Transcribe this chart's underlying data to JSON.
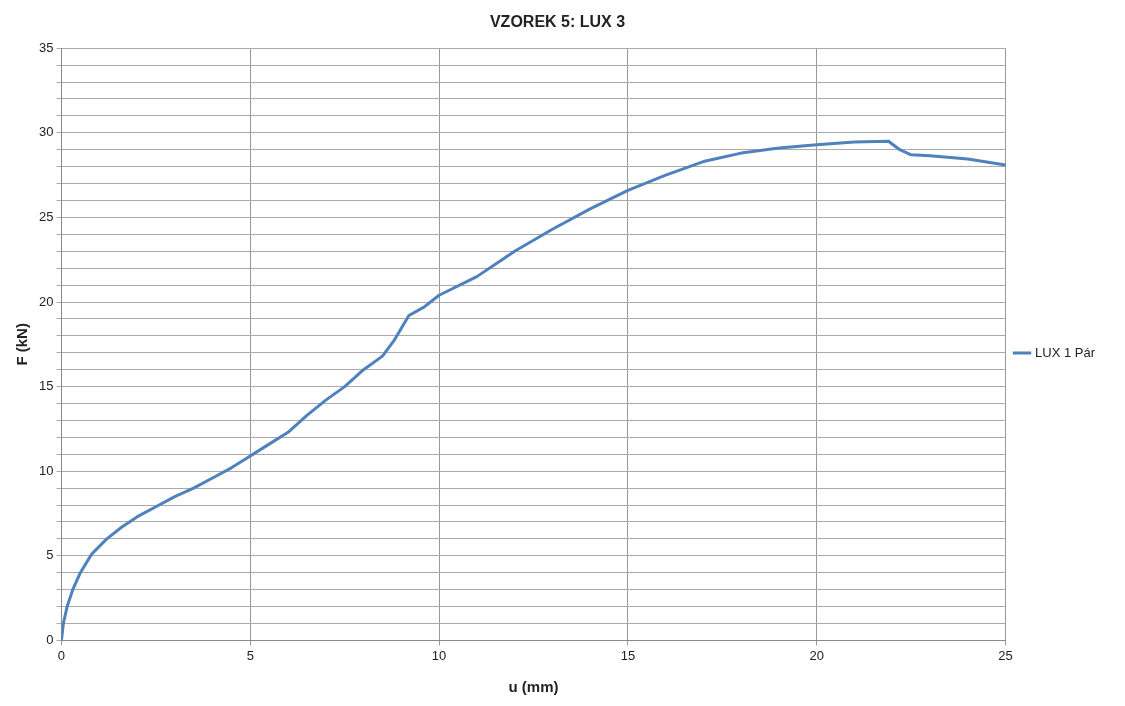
{
  "chart_data": {
    "type": "line",
    "title": "VZOREK 5: LUX 3",
    "xlabel": "u (mm)",
    "ylabel": "F (kN)",
    "xlim": [
      0,
      25
    ],
    "xticks": [
      0,
      5,
      10,
      15,
      20,
      25
    ],
    "ylim": [
      0,
      35
    ],
    "yticks": [
      0,
      {
        "value": 1,
        "label": null
      },
      {
        "value": 2,
        "label": null
      },
      {
        "value": 3,
        "label": null
      },
      {
        "value": 4,
        "label": null
      },
      5,
      {
        "value": 6,
        "label": null
      },
      {
        "value": 7,
        "label": null
      },
      {
        "value": 8,
        "label": null
      },
      {
        "value": 9,
        "label": null
      },
      10,
      {
        "value": 11,
        "label": null
      },
      {
        "value": 12,
        "label": null
      },
      {
        "value": 13,
        "label": null
      },
      {
        "value": 14,
        "label": null
      },
      15,
      {
        "value": 16,
        "label": null
      },
      {
        "value": 17,
        "label": null
      },
      {
        "value": 18,
        "label": null
      },
      {
        "value": 19,
        "label": null
      },
      20,
      {
        "value": 21,
        "label": null
      },
      {
        "value": 22,
        "label": null
      },
      {
        "value": 23,
        "label": null
      },
      {
        "value": 24,
        "label": null
      },
      25,
      {
        "value": 26,
        "label": null
      },
      {
        "value": 27,
        "label": null
      },
      {
        "value": 28,
        "label": null
      },
      {
        "value": 29,
        "label": null
      },
      30,
      {
        "value": 31,
        "label": null
      },
      {
        "value": 32,
        "label": null
      },
      {
        "value": 33,
        "label": null
      },
      {
        "value": 34,
        "label": null
      },
      35
    ],
    "grid": true,
    "legend": "right",
    "marker": "none",
    "line_style": "solid",
    "series": [
      {
        "name": "LUX 1 Pár",
        "color": "#4f81bd",
        "x": [
          0,
          0.05,
          0.15,
          0.3,
          0.5,
          0.8,
          1.2,
          1.6,
          2.0,
          2.5,
          3,
          3.5,
          4,
          4.5,
          5,
          5.5,
          6,
          6.5,
          7,
          7.5,
          8,
          8.5,
          8.8,
          9.2,
          9.6,
          10,
          11,
          12,
          13,
          14,
          15,
          16,
          17,
          18,
          19,
          20,
          21,
          21.9,
          22.2,
          22.5,
          23,
          24,
          25
        ],
        "values": [
          0,
          1,
          2,
          3,
          4,
          5.1,
          6,
          6.7,
          7.3,
          7.9,
          8.5,
          9,
          9.6,
          10.2,
          10.9,
          11.6,
          12.3,
          13.3,
          14.2,
          15,
          16,
          16.8,
          17.7,
          19.2,
          19.7,
          20.4,
          21.5,
          23,
          24.3,
          25.5,
          26.6,
          27.5,
          28.3,
          28.8,
          29.1,
          29.3,
          29.45,
          29.5,
          29,
          28.7,
          28.65,
          28.45,
          28.1
        ]
      }
    ]
  }
}
